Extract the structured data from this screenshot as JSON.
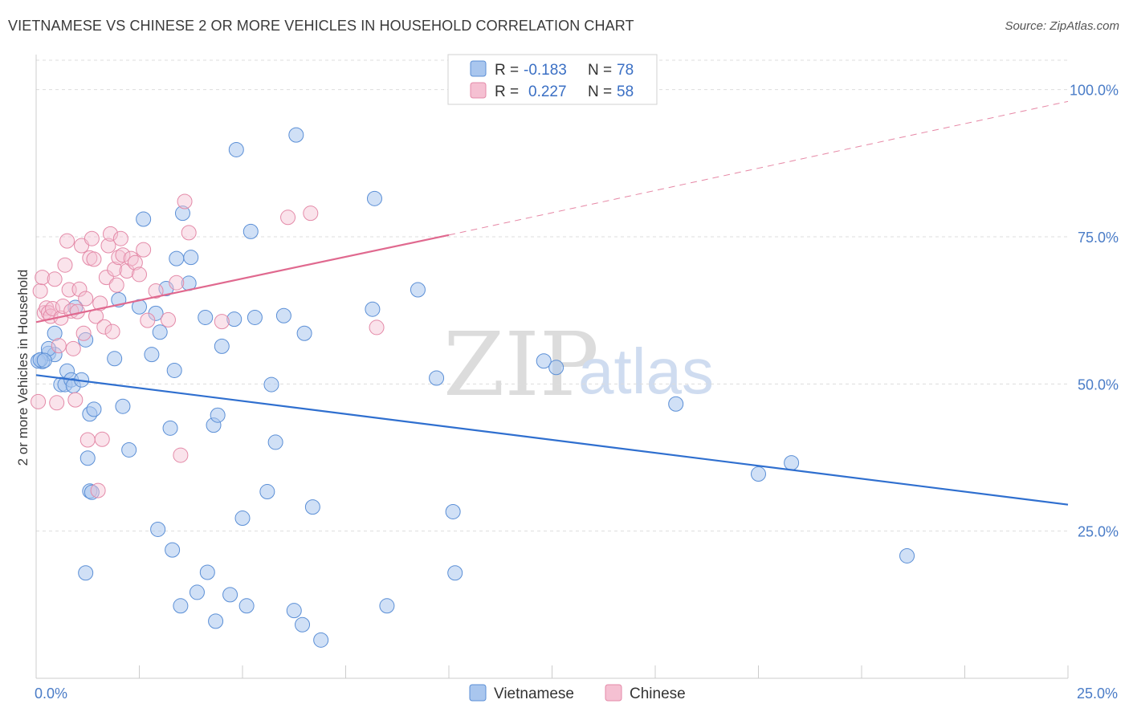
{
  "title": "VIETNAMESE VS CHINESE 2 OR MORE VEHICLES IN HOUSEHOLD CORRELATION CHART",
  "source": "Source: ZipAtlas.com",
  "watermark": {
    "zip": "ZIP",
    "atlas": "atlas"
  },
  "colors": {
    "vietnamese": "#5b8fd6",
    "vietnamese_fill": "#a9c6ee",
    "chinese": "#e48aa8",
    "chinese_fill": "#f5c0d2",
    "trend_vietnamese": "#2f6fcf",
    "trend_chinese": "#e0698f",
    "grid": "#dddddd",
    "axis_text": "#4a7cc7"
  },
  "legend": {
    "rows": [
      {
        "r_label": "R =",
        "r_value": "-0.183",
        "n_label": "N =",
        "n_value": "78"
      },
      {
        "r_label": "R =",
        "r_value": "0.227",
        "n_label": "N =",
        "n_value": "58"
      }
    ]
  },
  "chart_data": {
    "type": "scatter",
    "title": "VIETNAMESE VS CHINESE 2 OR MORE VEHICLES IN HOUSEHOLD CORRELATION CHART",
    "xlabel": "",
    "ylabel": "2 or more Vehicles in Household",
    "xlim": [
      0,
      25
    ],
    "ylim": [
      0,
      105
    ],
    "x_tick_labels": [
      "0.0%",
      "25.0%"
    ],
    "y_ticks": [
      25,
      50,
      75,
      100
    ],
    "y_tick_labels": [
      "25.0%",
      "50.0%",
      "75.0%",
      "100.0%"
    ],
    "legend_position": "top-center",
    "series": [
      {
        "name": "Vietnamese",
        "r": -0.183,
        "n": 78,
        "trend": {
          "x": [
            0,
            25
          ],
          "y": [
            51.5,
            29.5
          ]
        },
        "points": [
          [
            0.15,
            53.8
          ],
          [
            0.3,
            55.2
          ],
          [
            0.45,
            55.0
          ],
          [
            0.3,
            56.0
          ],
          [
            0.45,
            58.6
          ],
          [
            0.6,
            49.9
          ],
          [
            0.7,
            49.9
          ],
          [
            0.75,
            52.2
          ],
          [
            0.85,
            50.7
          ],
          [
            0.9,
            49.7
          ],
          [
            1.1,
            50.7
          ],
          [
            1.2,
            57.5
          ],
          [
            1.25,
            37.4
          ],
          [
            1.3,
            31.8
          ],
          [
            1.35,
            31.6
          ],
          [
            0.95,
            63.0
          ],
          [
            1.2,
            17.9
          ],
          [
            1.3,
            44.9
          ],
          [
            1.4,
            45.7
          ],
          [
            1.9,
            54.3
          ],
          [
            2.0,
            64.3
          ],
          [
            2.1,
            46.2
          ],
          [
            2.25,
            38.8
          ],
          [
            2.5,
            63.1
          ],
          [
            2.6,
            78.0
          ],
          [
            2.8,
            55.0
          ],
          [
            2.9,
            62.0
          ],
          [
            2.95,
            25.3
          ],
          [
            3.0,
            58.8
          ],
          [
            3.15,
            66.2
          ],
          [
            3.25,
            42.5
          ],
          [
            3.3,
            21.8
          ],
          [
            3.35,
            52.3
          ],
          [
            3.4,
            71.3
          ],
          [
            3.5,
            12.3
          ],
          [
            3.55,
            79.0
          ],
          [
            3.7,
            67.1
          ],
          [
            3.75,
            71.5
          ],
          [
            3.9,
            14.6
          ],
          [
            4.1,
            61.3
          ],
          [
            4.15,
            18.0
          ],
          [
            4.3,
            43.0
          ],
          [
            4.35,
            9.7
          ],
          [
            4.4,
            44.7
          ],
          [
            4.5,
            56.4
          ],
          [
            4.7,
            14.2
          ],
          [
            4.8,
            61.0
          ],
          [
            4.85,
            89.8
          ],
          [
            5.0,
            27.2
          ],
          [
            5.1,
            12.3
          ],
          [
            5.2,
            75.9
          ],
          [
            5.3,
            61.3
          ],
          [
            5.6,
            31.7
          ],
          [
            5.7,
            49.9
          ],
          [
            5.8,
            40.1
          ],
          [
            6.0,
            61.6
          ],
          [
            6.25,
            11.5
          ],
          [
            6.3,
            92.3
          ],
          [
            6.45,
            9.1
          ],
          [
            6.5,
            58.6
          ],
          [
            6.7,
            29.1
          ],
          [
            6.9,
            6.5
          ],
          [
            8.15,
            62.7
          ],
          [
            8.2,
            81.5
          ],
          [
            8.5,
            12.3
          ],
          [
            9.25,
            66.0
          ],
          [
            9.7,
            51.0
          ],
          [
            10.1,
            28.3
          ],
          [
            10.15,
            17.9
          ],
          [
            12.3,
            53.9
          ],
          [
            12.6,
            52.8
          ],
          [
            15.5,
            46.6
          ],
          [
            17.5,
            34.7
          ],
          [
            18.3,
            36.6
          ],
          [
            21.1,
            20.8
          ],
          [
            0.05,
            53.9
          ],
          [
            0.1,
            54.1
          ],
          [
            0.2,
            54.0
          ]
        ]
      },
      {
        "name": "Chinese",
        "r": 0.227,
        "n": 58,
        "trend": {
          "x": [
            0,
            10
          ],
          "y": [
            60.5,
            75.3
          ],
          "dashed_to": [
            25,
            98.0
          ]
        },
        "points": [
          [
            0.05,
            47.0
          ],
          [
            0.1,
            65.8
          ],
          [
            0.15,
            68.1
          ],
          [
            0.2,
            62.1
          ],
          [
            0.25,
            62.9
          ],
          [
            0.3,
            62.1
          ],
          [
            0.35,
            61.5
          ],
          [
            0.4,
            62.8
          ],
          [
            0.45,
            67.8
          ],
          [
            0.5,
            46.8
          ],
          [
            0.55,
            56.5
          ],
          [
            0.6,
            61.2
          ],
          [
            0.65,
            63.2
          ],
          [
            0.7,
            70.2
          ],
          [
            0.75,
            74.3
          ],
          [
            0.8,
            66.0
          ],
          [
            0.85,
            62.4
          ],
          [
            0.9,
            56.0
          ],
          [
            0.95,
            47.3
          ],
          [
            1.0,
            62.3
          ],
          [
            1.05,
            66.1
          ],
          [
            1.1,
            73.5
          ],
          [
            1.15,
            58.6
          ],
          [
            1.2,
            64.5
          ],
          [
            1.25,
            40.5
          ],
          [
            1.3,
            71.4
          ],
          [
            1.35,
            74.7
          ],
          [
            1.4,
            71.2
          ],
          [
            1.45,
            61.5
          ],
          [
            1.5,
            31.9
          ],
          [
            1.55,
            63.7
          ],
          [
            1.6,
            40.6
          ],
          [
            1.65,
            59.7
          ],
          [
            1.7,
            68.1
          ],
          [
            1.75,
            73.5
          ],
          [
            1.8,
            75.5
          ],
          [
            1.85,
            58.9
          ],
          [
            1.9,
            69.5
          ],
          [
            1.95,
            66.8
          ],
          [
            2.0,
            71.5
          ],
          [
            2.05,
            74.7
          ],
          [
            2.1,
            71.9
          ],
          [
            2.2,
            69.2
          ],
          [
            2.3,
            71.3
          ],
          [
            2.4,
            70.6
          ],
          [
            2.5,
            68.6
          ],
          [
            2.6,
            72.8
          ],
          [
            2.7,
            60.8
          ],
          [
            2.9,
            65.8
          ],
          [
            3.2,
            60.9
          ],
          [
            3.4,
            67.2
          ],
          [
            3.5,
            37.9
          ],
          [
            3.6,
            81.0
          ],
          [
            3.7,
            75.7
          ],
          [
            4.5,
            60.6
          ],
          [
            6.1,
            78.3
          ],
          [
            6.65,
            79.0
          ],
          [
            8.25,
            59.6
          ]
        ]
      }
    ]
  },
  "bottom_legend": [
    {
      "label": "Vietnamese"
    },
    {
      "label": "Chinese"
    }
  ]
}
